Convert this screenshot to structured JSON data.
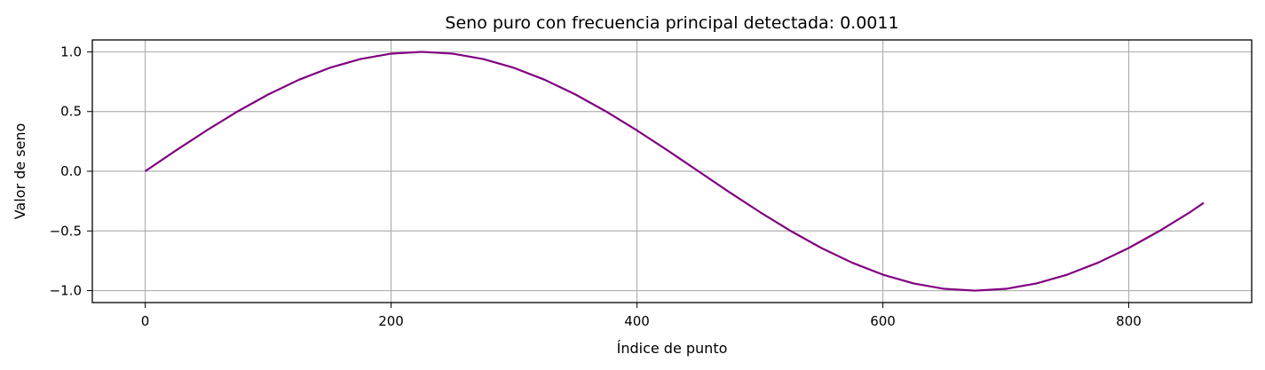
{
  "chart_data": {
    "type": "line",
    "title": "Seno puro con frecuencia principal detectada: 0.0011",
    "xlabel": "Índice de punto",
    "ylabel": "Valor de seno",
    "xlim": [
      -43,
      900
    ],
    "ylim": [
      -1.1,
      1.1
    ],
    "x_ticks": [
      0,
      200,
      400,
      600,
      800
    ],
    "x_tick_labels": [
      "0",
      "200",
      "400",
      "600",
      "800"
    ],
    "y_ticks": [
      1.0,
      0.5,
      0.0,
      -0.5,
      -1.0
    ],
    "y_tick_labels": [
      "1.0",
      "0.5",
      "0.0",
      "−0.5",
      "−1.0"
    ],
    "grid": true,
    "series": [
      {
        "color": "#800080",
        "x": [
          0,
          25,
          50,
          75,
          100,
          125,
          150,
          175,
          200,
          225,
          250,
          275,
          300,
          325,
          350,
          375,
          400,
          425,
          450,
          475,
          500,
          525,
          550,
          575,
          600,
          625,
          650,
          675,
          700,
          725,
          750,
          775,
          800,
          825,
          850,
          861
        ],
        "y": [
          0.0,
          0.174,
          0.342,
          0.5,
          0.643,
          0.766,
          0.866,
          0.94,
          0.985,
          1.0,
          0.985,
          0.94,
          0.866,
          0.766,
          0.643,
          0.5,
          0.342,
          0.174,
          0.0,
          -0.174,
          -0.342,
          -0.5,
          -0.643,
          -0.766,
          -0.866,
          -0.94,
          -0.985,
          -1.0,
          -0.985,
          -0.94,
          -0.866,
          -0.766,
          -0.643,
          -0.5,
          -0.342,
          -0.265
        ]
      }
    ]
  }
}
